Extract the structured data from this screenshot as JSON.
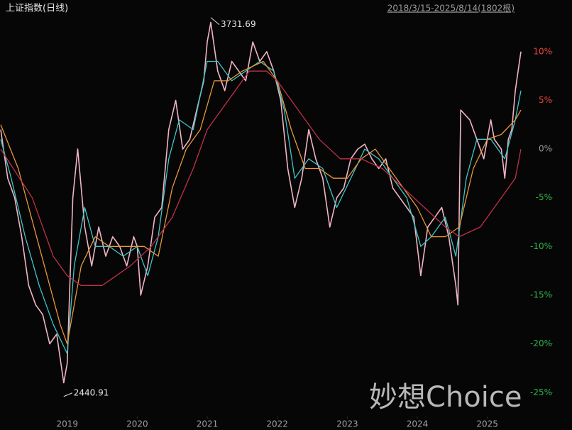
{
  "chart_data": {
    "type": "line",
    "title": "上证指数(日线)",
    "subtitle": "2018/3/15-2025/8/14(1802根)",
    "watermark": "妙想Choice",
    "annotations": [
      {
        "text": "3731.69",
        "x": 2021.05,
        "y": 13.5
      },
      {
        "text": "2440.91",
        "x": 2018.95,
        "y": -25.4
      }
    ],
    "xlim": [
      2018.04,
      2025.49
    ],
    "xticks": [
      2019,
      2020,
      2021,
      2022,
      2023,
      2024,
      2025
    ],
    "ylim": [
      -26,
      15.3
    ],
    "yticks": [
      {
        "value": 10,
        "label": "10%"
      },
      {
        "value": 5,
        "label": "5%"
      },
      {
        "value": 0,
        "label": "0%"
      },
      {
        "value": -5,
        "label": "-5%"
      },
      {
        "value": -10,
        "label": "-10%"
      },
      {
        "value": -15,
        "label": "-15%"
      },
      {
        "value": -20,
        "label": "-20%"
      },
      {
        "value": -25,
        "label": "-25%"
      }
    ],
    "series": [
      {
        "color": "#f0b4c4",
        "x": [
          2018.05,
          2018.15,
          2018.25,
          2018.35,
          2018.45,
          2018.55,
          2018.65,
          2018.75,
          2018.85,
          2018.95,
          2019.0,
          2019.08,
          2019.15,
          2019.25,
          2019.35,
          2019.45,
          2019.55,
          2019.65,
          2019.75,
          2019.85,
          2019.95,
          2020.0,
          2020.05,
          2020.15,
          2020.25,
          2020.35,
          2020.45,
          2020.55,
          2020.65,
          2020.75,
          2020.85,
          2020.95,
          2021.0,
          2021.05,
          2021.15,
          2021.25,
          2021.35,
          2021.45,
          2021.55,
          2021.65,
          2021.75,
          2021.85,
          2021.95,
          2022.05,
          2022.15,
          2022.25,
          2022.35,
          2022.45,
          2022.55,
          2022.65,
          2022.75,
          2022.85,
          2022.95,
          2023.05,
          2023.15,
          2023.25,
          2023.35,
          2023.45,
          2023.55,
          2023.65,
          2023.75,
          2023.85,
          2023.95,
          2024.05,
          2024.15,
          2024.25,
          2024.35,
          2024.45,
          2024.55,
          2024.58,
          2024.62,
          2024.75,
          2024.85,
          2024.95,
          2025.05,
          2025.1,
          2025.2,
          2025.25,
          2025.3,
          2025.35,
          2025.4,
          2025.48
        ],
        "values": [
          2,
          -3,
          -5,
          -9,
          -14,
          -16,
          -17,
          -20,
          -19,
          -24,
          -22,
          -5,
          0,
          -8,
          -12,
          -8,
          -11,
          -9,
          -10,
          -12,
          -9,
          -10,
          -15,
          -12,
          -7,
          -6,
          2,
          5,
          0,
          1,
          4,
          7,
          11,
          13,
          8,
          6,
          9,
          8,
          7,
          11,
          9,
          10,
          8,
          5,
          -2,
          -6,
          -3,
          2,
          -1,
          -3,
          -8,
          -5,
          -4,
          -1,
          0,
          0.5,
          -1,
          -2,
          -1,
          -4,
          -5,
          -6,
          -7,
          -13,
          -8,
          -7,
          -6,
          -9,
          -14,
          -16,
          4,
          3,
          1,
          -1,
          3,
          1,
          0,
          -3,
          1,
          2,
          6,
          10
        ]
      },
      {
        "color": "#3fc6c8",
        "x": [
          2018.05,
          2018.2,
          2018.4,
          2018.6,
          2018.8,
          2019.0,
          2019.1,
          2019.25,
          2019.4,
          2019.6,
          2019.8,
          2020.0,
          2020.15,
          2020.3,
          2020.45,
          2020.6,
          2020.8,
          2021.0,
          2021.15,
          2021.35,
          2021.55,
          2021.75,
          2021.95,
          2022.1,
          2022.25,
          2022.45,
          2022.65,
          2022.85,
          2023.05,
          2023.25,
          2023.45,
          2023.65,
          2023.85,
          2024.05,
          2024.2,
          2024.4,
          2024.55,
          2024.7,
          2024.85,
          2025.05,
          2025.25,
          2025.4,
          2025.48
        ],
        "values": [
          1,
          -3,
          -9,
          -14,
          -18,
          -21,
          -12,
          -6,
          -10,
          -10,
          -11,
          -10,
          -13,
          -9,
          -1,
          3,
          2,
          9,
          9,
          7,
          8,
          9,
          8,
          4,
          -3,
          -1,
          -2,
          -6,
          -3,
          0,
          -1,
          -3,
          -5,
          -10,
          -9,
          -7,
          -11,
          -3,
          1,
          1,
          -1,
          3,
          6
        ]
      },
      {
        "color": "#e8973a",
        "x": [
          2018.05,
          2018.3,
          2018.6,
          2018.9,
          2019.0,
          2019.2,
          2019.4,
          2019.6,
          2019.9,
          2020.1,
          2020.3,
          2020.5,
          2020.7,
          2020.9,
          2021.1,
          2021.3,
          2021.5,
          2021.8,
          2022.0,
          2022.2,
          2022.4,
          2022.6,
          2022.8,
          2023.0,
          2023.2,
          2023.4,
          2023.6,
          2023.8,
          2024.0,
          2024.2,
          2024.4,
          2024.6,
          2024.8,
          2025.0,
          2025.2,
          2025.4,
          2025.48
        ],
        "values": [
          2.5,
          -2,
          -10,
          -18,
          -20,
          -12,
          -9,
          -10,
          -10,
          -10,
          -11,
          -4,
          0,
          2,
          7,
          7,
          8,
          9,
          7,
          2,
          -2,
          -2,
          -3,
          -3,
          -1,
          0,
          -2,
          -4,
          -6,
          -9,
          -9,
          -8,
          -2,
          1,
          1.5,
          3,
          4
        ]
      },
      {
        "color": "#c0304a",
        "x": [
          2018.05,
          2018.5,
          2018.8,
          2019.0,
          2019.2,
          2019.5,
          2019.9,
          2020.2,
          2020.5,
          2020.8,
          2021.0,
          2021.3,
          2021.6,
          2021.85,
          2022.0,
          2022.3,
          2022.6,
          2022.9,
          2023.2,
          2023.5,
          2023.8,
          2024.1,
          2024.4,
          2024.6,
          2024.9,
          2025.2,
          2025.4,
          2025.48
        ],
        "values": [
          0,
          -5,
          -11,
          -13,
          -14,
          -14,
          -12,
          -10,
          -7,
          -2,
          2,
          5,
          8,
          8,
          7,
          4,
          1,
          -1,
          -1,
          -2,
          -4,
          -6,
          -8,
          -9,
          -8,
          -5,
          -3,
          0
        ]
      }
    ]
  }
}
